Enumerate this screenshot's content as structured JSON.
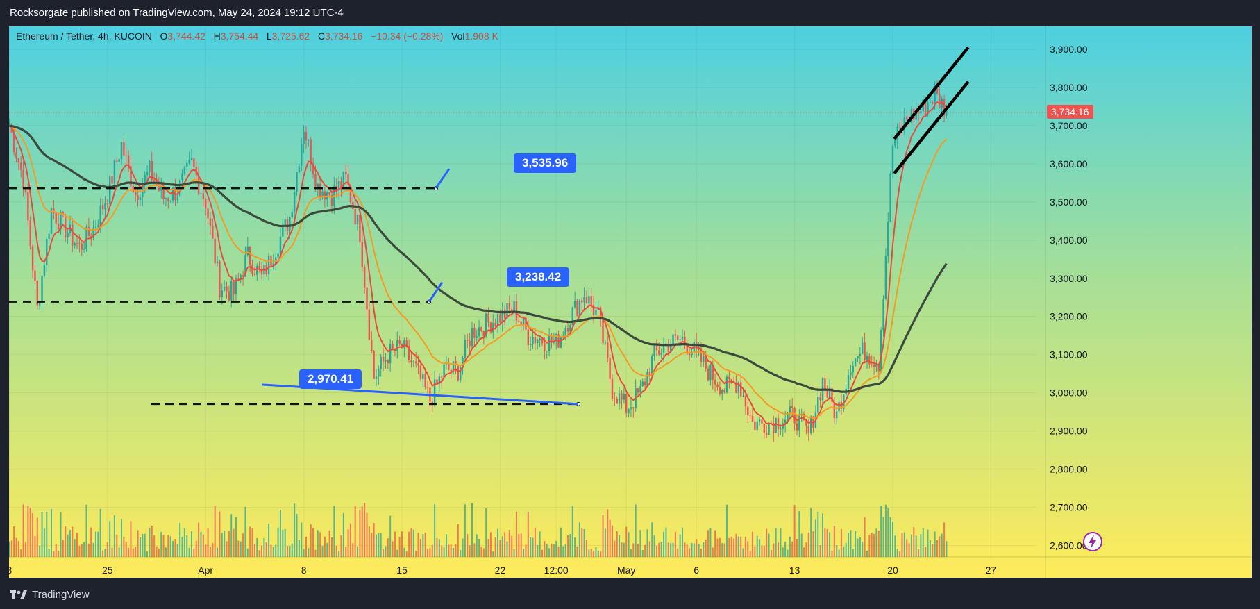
{
  "header": {
    "published": "Rocksorgate published on TradingView.com, May 24, 2024 19:12 UTC-4"
  },
  "legend": {
    "symbol": "Ethereum / Tether, 4h, KUCOIN",
    "o_label": "O",
    "o_value": "3,744.42",
    "h_label": "H",
    "h_value": "3,754.44",
    "l_label": "L",
    "l_value": "3,725.62",
    "c_label": "C",
    "c_value": "3,734.16",
    "change": "−10.34 (−0.28%)",
    "vol_label": "Vol",
    "vol_value": "1.908 K"
  },
  "footer": {
    "brand": "TradingView"
  },
  "colors": {
    "up": "#26a69a",
    "down": "#ef5350",
    "ema_fast": "#e84a3c",
    "ema_mid": "#f59a23",
    "ema_slow": "#3b4a3c",
    "callout": "#2962ff"
  },
  "chart_data": {
    "type": "candlestick",
    "symbol": "Ethereum / Tether",
    "timeframe": "4h",
    "exchange": "KUCOIN",
    "ylim": [
      2570,
      3960
    ],
    "y_ticks": [
      "3,900.00",
      "3,800.00",
      "3,700.00",
      "3,600.00",
      "3,500.00",
      "3,400.00",
      "3,300.00",
      "3,200.00",
      "3,100.00",
      "3,000.00",
      "2,900.00",
      "2,800.00",
      "2,700.00",
      "2,600.00"
    ],
    "y_tick_values": [
      3900,
      3800,
      3700,
      3600,
      3500,
      3400,
      3300,
      3200,
      3100,
      3000,
      2900,
      2800,
      2700,
      2600
    ],
    "x_ticks": [
      "8",
      "25",
      "Apr",
      "8",
      "15",
      "22",
      "12:00",
      "May",
      "6",
      "13",
      "20",
      "27"
    ],
    "last_price": "3,734.16",
    "last_price_value": 3734.16,
    "path_points": [
      [
        "2024-03-18",
        3700
      ],
      [
        "2024-03-19",
        3560
      ],
      [
        "2024-03-20",
        3220
      ],
      [
        "2024-03-21",
        3480
      ],
      [
        "2024-03-22",
        3430
      ],
      [
        "2024-03-23",
        3380
      ],
      [
        "2024-03-24",
        3430
      ],
      [
        "2024-03-25",
        3520
      ],
      [
        "2024-03-26",
        3650
      ],
      [
        "2024-03-27",
        3520
      ],
      [
        "2024-03-28",
        3580
      ],
      [
        "2024-03-29",
        3510
      ],
      [
        "2024-03-30",
        3530
      ],
      [
        "2024-03-31",
        3600
      ],
      [
        "2024-04-01",
        3500
      ],
      [
        "2024-04-02",
        3280
      ],
      [
        "2024-04-03",
        3260
      ],
      [
        "2024-04-04",
        3360
      ],
      [
        "2024-04-05",
        3300
      ],
      [
        "2024-04-06",
        3380
      ],
      [
        "2024-04-07",
        3460
      ],
      [
        "2024-04-08",
        3700
      ],
      [
        "2024-04-09",
        3540
      ],
      [
        "2024-04-10",
        3520
      ],
      [
        "2024-04-11",
        3560
      ],
      [
        "2024-04-12",
        3420
      ],
      [
        "2024-04-13",
        3040
      ],
      [
        "2024-04-14",
        3100
      ],
      [
        "2024-04-15",
        3120
      ],
      [
        "2024-04-16",
        3060
      ],
      [
        "2024-04-17",
        2980
      ],
      [
        "2024-04-18",
        3060
      ],
      [
        "2024-04-19",
        3060
      ],
      [
        "2024-04-20",
        3160
      ],
      [
        "2024-04-21",
        3180
      ],
      [
        "2024-04-22",
        3200
      ],
      [
        "2024-04-23",
        3220
      ],
      [
        "2024-04-24",
        3150
      ],
      [
        "2024-04-25",
        3140
      ],
      [
        "2024-04-26",
        3130
      ],
      [
        "2024-04-27",
        3200
      ],
      [
        "2024-04-28",
        3260
      ],
      [
        "2024-04-29",
        3200
      ],
      [
        "2024-04-30",
        3010
      ],
      [
        "2024-05-01",
        2960
      ],
      [
        "2024-05-02",
        3000
      ],
      [
        "2024-05-03",
        3100
      ],
      [
        "2024-05-04",
        3130
      ],
      [
        "2024-05-05",
        3140
      ],
      [
        "2024-05-06",
        3100
      ],
      [
        "2024-05-07",
        3050
      ],
      [
        "2024-05-08",
        3010
      ],
      [
        "2024-05-09",
        3030
      ],
      [
        "2024-05-10",
        2920
      ],
      [
        "2024-05-11",
        2920
      ],
      [
        "2024-05-12",
        2930
      ],
      [
        "2024-05-13",
        2940
      ],
      [
        "2024-05-14",
        2890
      ],
      [
        "2024-05-15",
        3030
      ],
      [
        "2024-05-16",
        2940
      ],
      [
        "2024-05-17",
        3080
      ],
      [
        "2024-05-18",
        3110
      ],
      [
        "2024-05-19",
        3080
      ],
      [
        "2024-05-20",
        3650
      ],
      [
        "2024-05-21",
        3720
      ],
      [
        "2024-05-22",
        3740
      ],
      [
        "2024-05-23",
        3780
      ],
      [
        "2024-05-24",
        3734
      ]
    ],
    "horizontal_levels": [
      {
        "label": "3,535.96",
        "value": 3535.96
      },
      {
        "label": "3,238.42",
        "value": 3238.42
      },
      {
        "label": "2,970.41",
        "value": 2970.41
      }
    ],
    "moving_averages": [
      "fast EMA (red)",
      "mid EMA (orange)",
      "slow MA (dark)"
    ],
    "channel": "ascending channel drawn on 20–24 May rally"
  }
}
